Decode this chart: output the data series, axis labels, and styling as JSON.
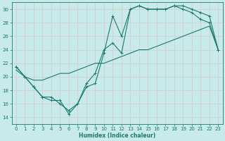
{
  "xlabel": "Humidex (Indice chaleur)",
  "bg_color": "#c8eaea",
  "line_color": "#1a7a6e",
  "grid_color": "#b8d8d8",
  "xlim": [
    -0.5,
    23.5
  ],
  "ylim": [
    13.0,
    31.0
  ],
  "yticks": [
    14,
    16,
    18,
    20,
    22,
    24,
    26,
    28,
    30
  ],
  "xticks": [
    0,
    1,
    2,
    3,
    4,
    5,
    6,
    7,
    8,
    9,
    10,
    11,
    12,
    13,
    14,
    15,
    16,
    17,
    18,
    19,
    20,
    21,
    22,
    23
  ],
  "line1": {
    "x": [
      0,
      1,
      2,
      3,
      4,
      5,
      6,
      7,
      8,
      9,
      10,
      11,
      12,
      13,
      14,
      15,
      16,
      17,
      18,
      19,
      20,
      21,
      22,
      23
    ],
    "y": [
      21.5,
      20.0,
      18.5,
      17.0,
      16.5,
      16.5,
      14.5,
      16.0,
      18.5,
      19.0,
      23.5,
      29.0,
      26.0,
      30.0,
      30.5,
      30.0,
      30.0,
      30.0,
      30.5,
      30.5,
      30.0,
      29.5,
      29.0,
      24.0
    ]
  },
  "line2": {
    "x": [
      0,
      1,
      2,
      3,
      4,
      5,
      6,
      7,
      8,
      9,
      10,
      11,
      12,
      13,
      14,
      15,
      16,
      17,
      18,
      19,
      20,
      21,
      22,
      23
    ],
    "y": [
      21.5,
      20.0,
      18.5,
      17.0,
      17.0,
      16.0,
      15.0,
      16.0,
      19.0,
      20.5,
      24.0,
      25.0,
      23.5,
      30.0,
      30.5,
      30.0,
      30.0,
      30.0,
      30.5,
      30.0,
      29.5,
      28.5,
      28.0,
      24.0
    ]
  },
  "line3": {
    "x": [
      0,
      1,
      2,
      3,
      4,
      5,
      6,
      7,
      8,
      9,
      10,
      11,
      12,
      13,
      14,
      15,
      16,
      17,
      18,
      19,
      20,
      21,
      22,
      23
    ],
    "y": [
      21.0,
      20.0,
      19.5,
      19.5,
      20.0,
      20.5,
      20.5,
      21.0,
      21.5,
      22.0,
      22.0,
      22.5,
      23.0,
      23.5,
      24.0,
      24.0,
      24.5,
      25.0,
      25.5,
      26.0,
      26.5,
      27.0,
      27.5,
      24.0
    ]
  }
}
